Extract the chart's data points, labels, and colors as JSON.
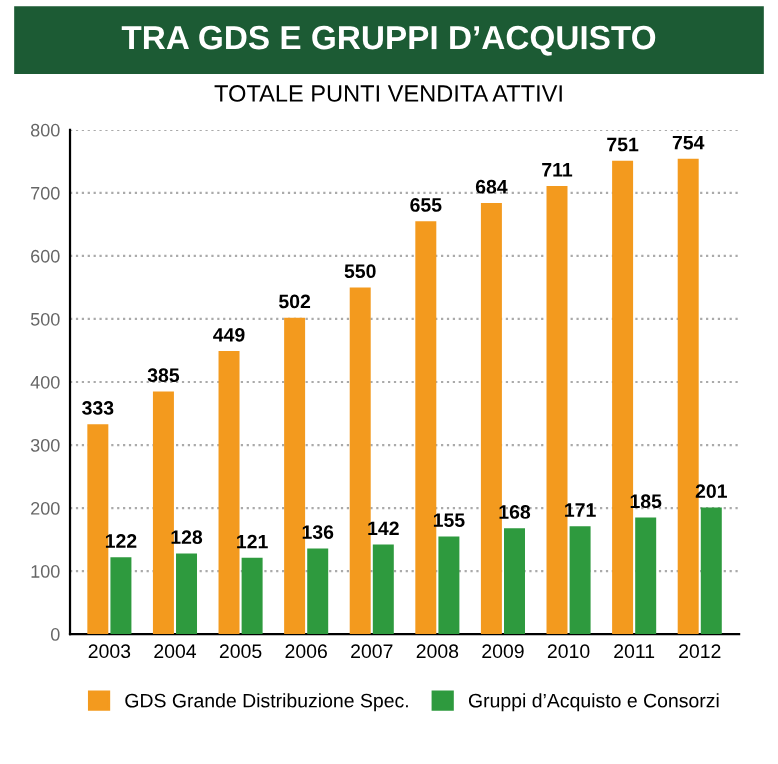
{
  "chart_data": {
    "type": "bar",
    "title": "TRA GDS E GRUPPI D’ACQUISTO",
    "subtitle": "TOTALE PUNTI VENDITA ATTIVI",
    "categories": [
      "2003",
      "2004",
      "2005",
      "2006",
      "2007",
      "2008",
      "2009",
      "2010",
      "2011",
      "2012"
    ],
    "series": [
      {
        "name": "GDS Grande Distribuzione Spec.",
        "color": "#f39a1e",
        "values": [
          333,
          385,
          449,
          502,
          550,
          655,
          684,
          711,
          751,
          754
        ]
      },
      {
        "name": "Gruppi d’Acquisto e Consorzi",
        "color": "#2e9a3e",
        "values": [
          122,
          128,
          121,
          136,
          142,
          155,
          168,
          171,
          185,
          201
        ]
      }
    ],
    "ylim": [
      0,
      800
    ],
    "yticks": [
      0,
      100,
      200,
      300,
      400,
      500,
      600,
      700,
      800
    ],
    "grid": "y",
    "data_labels": true,
    "legend": "bottom"
  }
}
